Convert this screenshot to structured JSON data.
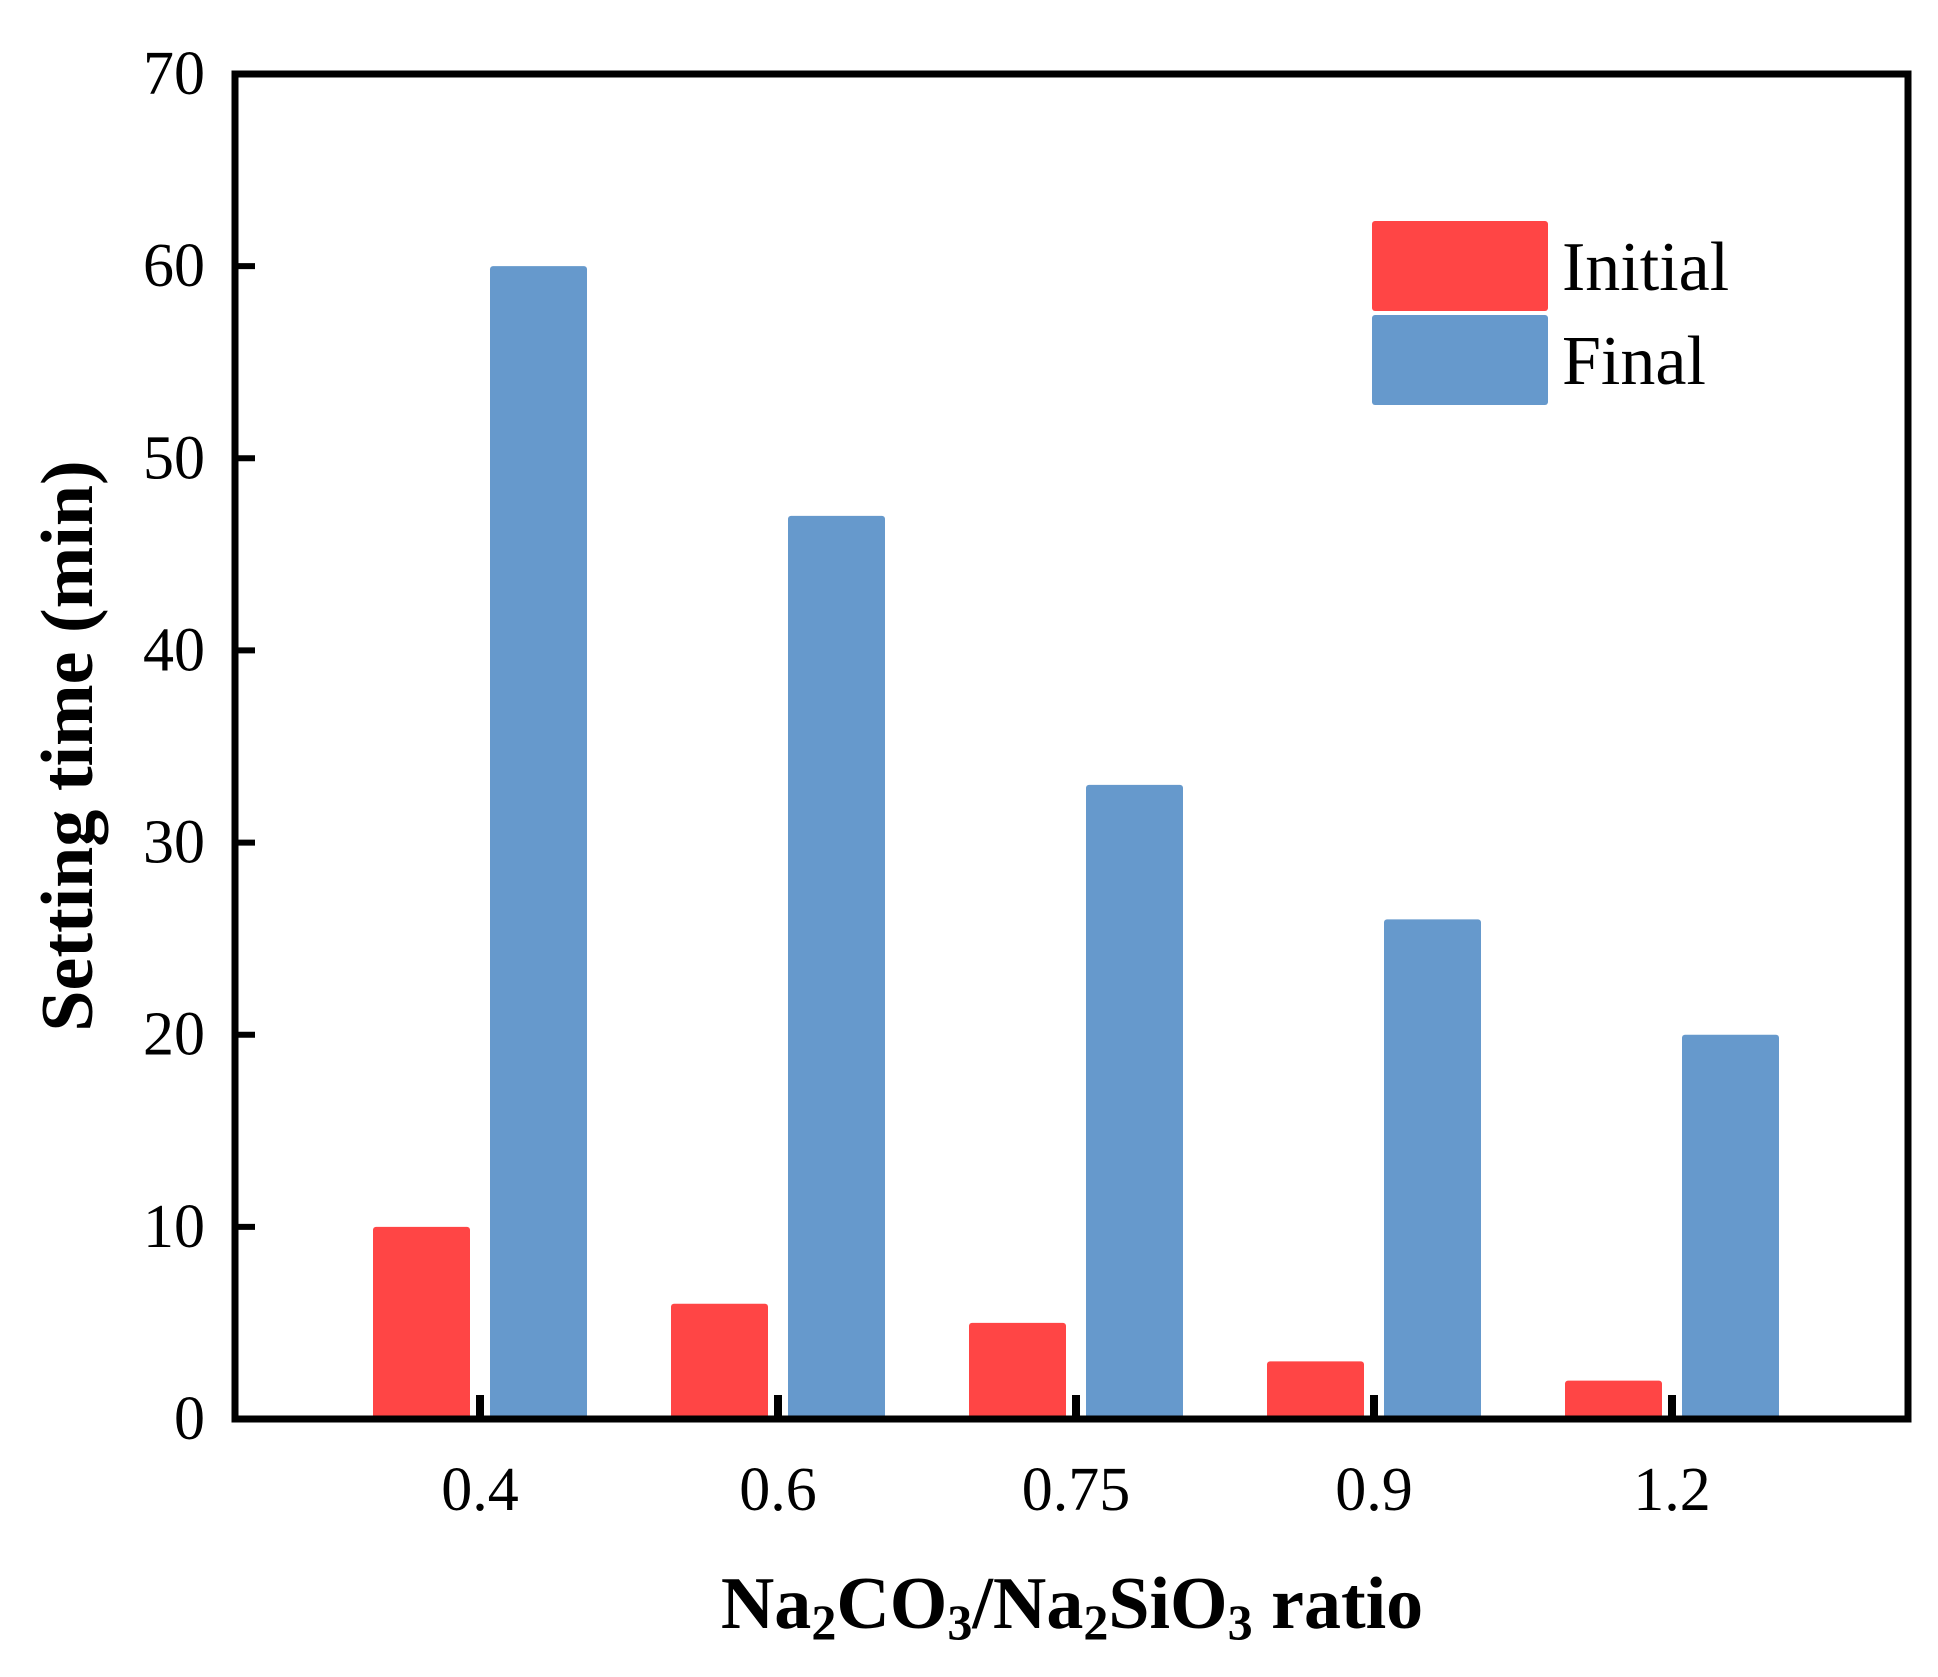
{
  "chart_data": {
    "type": "bar",
    "title": "",
    "categories": [
      "0.4",
      "0.6",
      "0.75",
      "0.9",
      "1.2"
    ],
    "series": [
      {
        "name": "Initial",
        "color": "#ff4545",
        "values": [
          10,
          6,
          5,
          3,
          2
        ]
      },
      {
        "name": "Final",
        "color": "#6699cc",
        "values": [
          60,
          47,
          33,
          26,
          20
        ]
      }
    ],
    "xlabel": {
      "parts": [
        {
          "text": "Na",
          "sub": false
        },
        {
          "text": "2",
          "sub": true
        },
        {
          "text": "CO",
          "sub": false
        },
        {
          "text": "3",
          "sub": true
        },
        {
          "text": "/Na",
          "sub": false
        },
        {
          "text": "2",
          "sub": true
        },
        {
          "text": "SiO",
          "sub": false
        },
        {
          "text": "3",
          "sub": true
        },
        {
          "text": " ratio",
          "sub": false
        }
      ]
    },
    "ylabel": "Setting time (min)",
    "ylim": [
      0,
      70
    ],
    "yticks": [
      "0",
      "10",
      "20",
      "30",
      "40",
      "50",
      "60",
      "70"
    ],
    "legend_position": "top-right",
    "grid": false
  }
}
